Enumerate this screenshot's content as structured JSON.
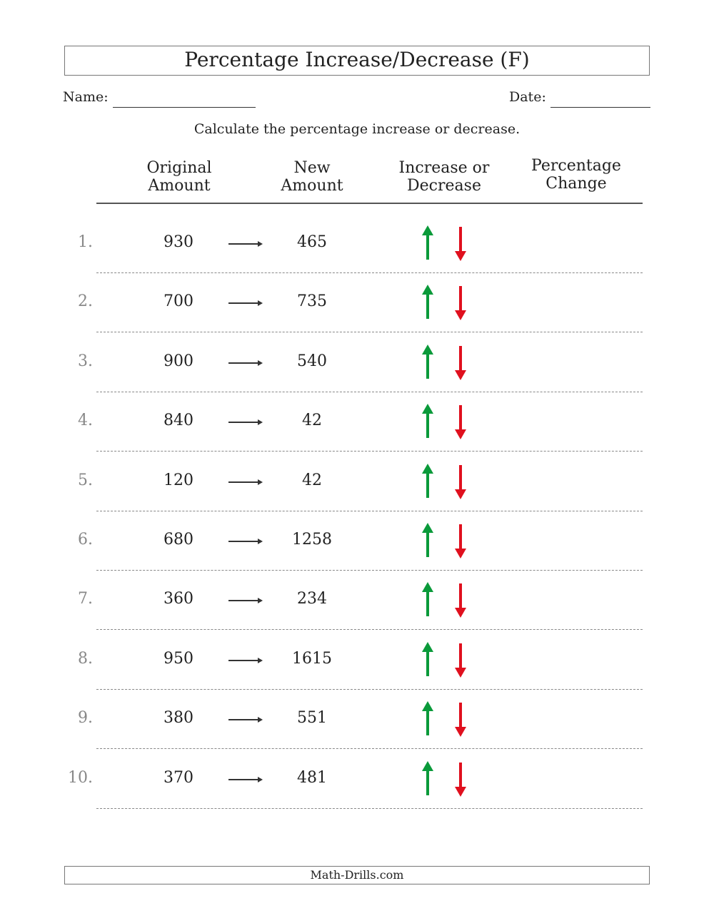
{
  "title": "Percentage Increase/Decrease (F)",
  "name_label": "Name:",
  "date_label": "Date:",
  "instructions": "Calculate the percentage increase or decrease.",
  "headers": {
    "original": [
      "Original",
      "Amount"
    ],
    "new": [
      "New",
      "Amount"
    ],
    "direction": [
      "Increase or",
      "Decrease"
    ],
    "percent": [
      "Percentage",
      "Change"
    ]
  },
  "colors": {
    "increase": "#0a9a3a",
    "decrease": "#e0101e"
  },
  "icons": {
    "arrow": "right-arrow-icon",
    "up": "arrow-up-icon",
    "down": "arrow-down-icon"
  },
  "rows": [
    {
      "n": "1.",
      "original": "930",
      "new": "465"
    },
    {
      "n": "2.",
      "original": "700",
      "new": "735"
    },
    {
      "n": "3.",
      "original": "900",
      "new": "540"
    },
    {
      "n": "4.",
      "original": "840",
      "new": "42"
    },
    {
      "n": "5.",
      "original": "120",
      "new": "42"
    },
    {
      "n": "6.",
      "original": "680",
      "new": "1258"
    },
    {
      "n": "7.",
      "original": "360",
      "new": "234"
    },
    {
      "n": "8.",
      "original": "950",
      "new": "1615"
    },
    {
      "n": "9.",
      "original": "380",
      "new": "551"
    },
    {
      "n": "10.",
      "original": "370",
      "new": "481"
    }
  ],
  "footer": "Math-Drills.com"
}
